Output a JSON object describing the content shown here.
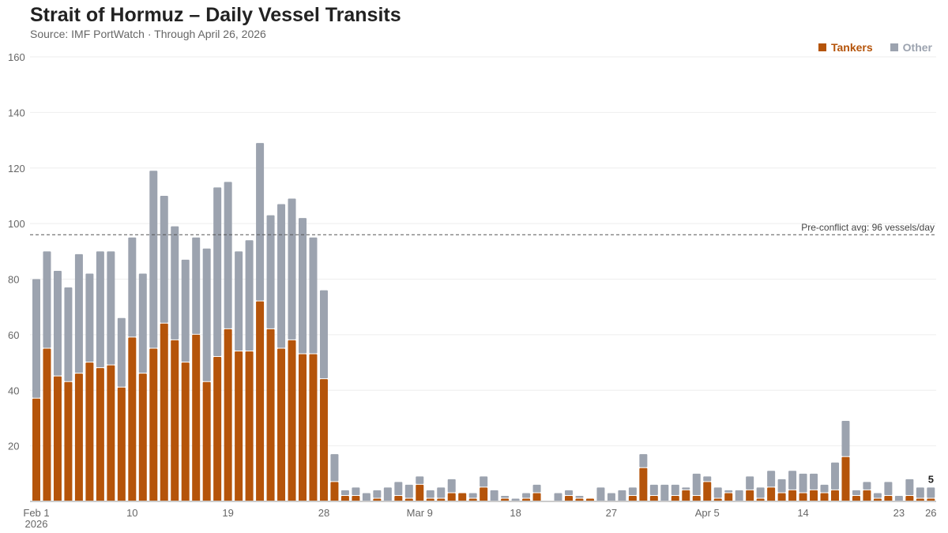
{
  "chart_data": {
    "type": "bar",
    "stacked": true,
    "title": "Strait of Hormuz – Daily Vessel Transits",
    "subtitle": "Source: IMF PortWatch · Through April 26, 2026",
    "xlabel": "",
    "ylabel": "",
    "ylim": [
      0,
      160
    ],
    "yticks": [
      20,
      40,
      60,
      80,
      100,
      120,
      140,
      160
    ],
    "grid": true,
    "legend_position": "top-right",
    "x_start": "2026-02-01",
    "x_end": "2026-04-26",
    "xticks": [
      {
        "index": 0,
        "label": "Feb 1",
        "sub": "2026"
      },
      {
        "index": 9,
        "label": "10"
      },
      {
        "index": 18,
        "label": "19"
      },
      {
        "index": 27,
        "label": "28"
      },
      {
        "index": 36,
        "label": "Mar 9"
      },
      {
        "index": 45,
        "label": "18"
      },
      {
        "index": 54,
        "label": "27"
      },
      {
        "index": 63,
        "label": "Apr 5"
      },
      {
        "index": 72,
        "label": "14"
      },
      {
        "index": 81,
        "label": "23"
      },
      {
        "index": 84,
        "label": "26"
      }
    ],
    "series": [
      {
        "name": "Tankers",
        "color": "#b5540a",
        "values": [
          37,
          55,
          45,
          43,
          46,
          50,
          48,
          49,
          41,
          59,
          46,
          55,
          64,
          58,
          50,
          60,
          43,
          52,
          62,
          54,
          54,
          72,
          62,
          55,
          58,
          53,
          53,
          44,
          7,
          2,
          2,
          0,
          1,
          0,
          2,
          1,
          6,
          1,
          1,
          3,
          3,
          1,
          5,
          0,
          1,
          0,
          1,
          3,
          0,
          0,
          2,
          1,
          1,
          0,
          0,
          0,
          2,
          12,
          2,
          0,
          2,
          4,
          2,
          7,
          1,
          3,
          0,
          4,
          1,
          5,
          3,
          4,
          3,
          4,
          3,
          4,
          16,
          2,
          4,
          1,
          2,
          0,
          2,
          1,
          1
        ]
      },
      {
        "name": "Other",
        "color": "#9ca3af",
        "values": [
          43,
          35,
          38,
          34,
          43,
          32,
          42,
          41,
          25,
          36,
          36,
          64,
          46,
          41,
          37,
          35,
          48,
          61,
          53,
          36,
          40,
          57,
          41,
          52,
          51,
          49,
          42,
          32,
          10,
          2,
          3,
          3,
          3,
          5,
          5,
          5,
          3,
          3,
          4,
          5,
          0,
          2,
          4,
          4,
          1,
          1,
          2,
          3,
          0,
          3,
          2,
          1,
          0,
          5,
          3,
          4,
          3,
          5,
          4,
          6,
          4,
          1,
          8,
          2,
          4,
          1,
          4,
          5,
          4,
          6,
          5,
          7,
          7,
          6,
          3,
          10,
          13,
          2,
          3,
          2,
          5,
          2,
          6,
          4,
          4
        ]
      }
    ],
    "reference_line": {
      "value": 96,
      "label": "Pre-conflict avg: 96 vessels/day"
    },
    "annotation": {
      "index": 84,
      "label": "5"
    }
  }
}
